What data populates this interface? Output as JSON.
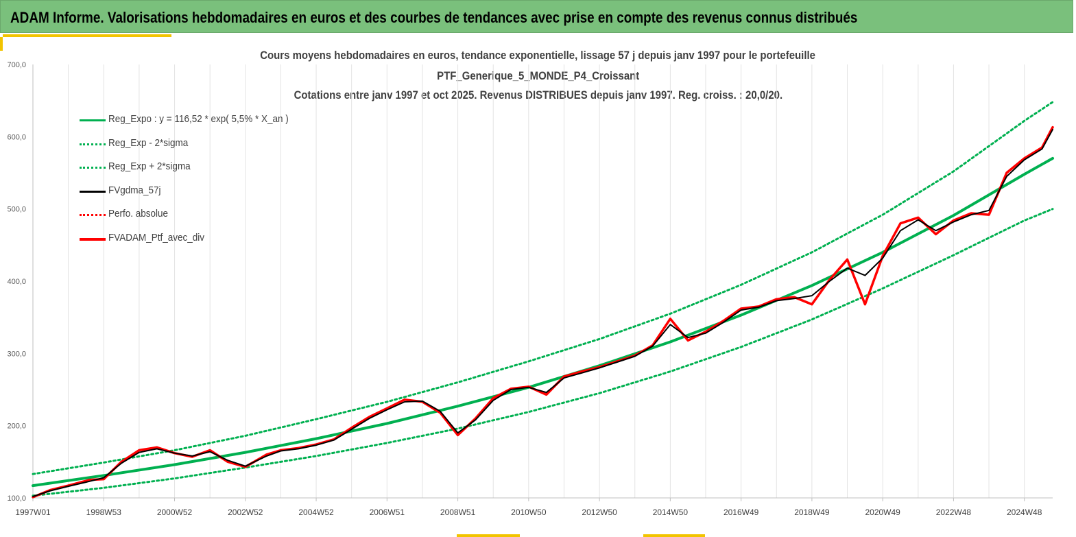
{
  "header": {
    "title": "ADAM Informe. Valorisations hebdomadaires en euros et des courbes de tendances avec prise en compte des revenus connus distribués"
  },
  "chart_data": {
    "type": "line",
    "title_lines": [
      "Cours moyens hebdomadaires  en euros, tendance exponentielle, lissage 57 j depuis janv 1997 pour le portefeuille",
      "PTF_Generique_5_MONDE_P4_Croissant",
      "Cotations  entre janv 1997 et oct 2025. Revenus DISTRIBUES depuis janv 1997. Reg. croiss. : 20,0/20."
    ],
    "ylim": [
      100,
      700
    ],
    "y_ticks": [
      "100,0",
      "200,0",
      "300,0",
      "400,0",
      "500,0",
      "600,0",
      "700,0"
    ],
    "y_tick_values": [
      100,
      200,
      300,
      400,
      500,
      600,
      700
    ],
    "x_range": [
      1997.0,
      2025.8
    ],
    "x_ticks": [
      "1997W01",
      "1998W53",
      "2000W52",
      "2002W52",
      "2004W52",
      "2006W51",
      "2008W51",
      "2010W50",
      "2012W50",
      "2014W50",
      "2016W49",
      "2018W49",
      "2020W49",
      "2022W48",
      "2024W48"
    ],
    "x_tick_years": [
      1997.0,
      1999.0,
      2001.0,
      2003.0,
      2005.0,
      2007.0,
      2009.0,
      2011.0,
      2013.0,
      2015.0,
      2017.0,
      2019.0,
      2021.0,
      2023.0,
      2025.0
    ],
    "grid": "vertical",
    "legend_position": "top-left",
    "series": [
      {
        "name": "Reg_Expo : y = 116,52 * exp( 5,5% *  X_an )",
        "color": "#00b050",
        "style": "solid",
        "x": [
          1997.0,
          1999.0,
          2001.0,
          2003.0,
          2005.0,
          2007.0,
          2009.0,
          2011.0,
          2013.0,
          2015.0,
          2017.0,
          2019.0,
          2021.0,
          2023.0,
          2025.0,
          2025.8
        ],
        "y": [
          117,
          131,
          146,
          163,
          182,
          203,
          227,
          253,
          283,
          316,
          353,
          394,
          440,
          491,
          548,
          570
        ]
      },
      {
        "name": "Reg_Exp - 2*sigma",
        "color": "#00b050",
        "style": "dotted",
        "x": [
          1997.0,
          1999.0,
          2001.0,
          2003.0,
          2005.0,
          2007.0,
          2009.0,
          2011.0,
          2013.0,
          2015.0,
          2017.0,
          2019.0,
          2021.0,
          2023.0,
          2025.0,
          2025.8
        ],
        "y": [
          103,
          114,
          127,
          142,
          158,
          176,
          196,
          219,
          245,
          275,
          309,
          347,
          390,
          436,
          484,
          500
        ]
      },
      {
        "name": "Reg_Exp + 2*sigma",
        "color": "#00b050",
        "style": "dotted",
        "x": [
          1997.0,
          1999.0,
          2001.0,
          2003.0,
          2005.0,
          2007.0,
          2009.0,
          2011.0,
          2013.0,
          2015.0,
          2017.0,
          2019.0,
          2021.0,
          2023.0,
          2025.0,
          2025.8
        ],
        "y": [
          133,
          149,
          166,
          186,
          209,
          233,
          260,
          289,
          320,
          355,
          395,
          440,
          492,
          552,
          622,
          648
        ]
      },
      {
        "name": "FVgdma_57j",
        "color": "#000000",
        "style": "solid",
        "x": [
          1997.0,
          1997.5,
          1998.0,
          1998.6,
          1999.0,
          1999.5,
          2000.0,
          2000.5,
          2001.0,
          2001.5,
          2002.0,
          2002.5,
          2003.0,
          2003.6,
          2004.0,
          2004.5,
          2005.0,
          2005.5,
          2006.0,
          2006.5,
          2007.0,
          2007.5,
          2008.0,
          2008.5,
          2009.0,
          2009.5,
          2010.0,
          2010.5,
          2011.0,
          2011.5,
          2012.0,
          2012.5,
          2013.0,
          2013.5,
          2014.0,
          2014.5,
          2015.0,
          2015.5,
          2016.0,
          2016.5,
          2017.0,
          2017.5,
          2018.0,
          2018.5,
          2019.0,
          2019.5,
          2020.0,
          2020.5,
          2021.0,
          2021.5,
          2022.0,
          2022.5,
          2023.0,
          2023.5,
          2024.0,
          2024.5,
          2025.0,
          2025.5,
          2025.8
        ],
        "y": [
          102,
          110,
          116,
          123,
          128,
          148,
          163,
          168,
          162,
          158,
          164,
          152,
          144,
          158,
          165,
          168,
          173,
          180,
          195,
          210,
          222,
          233,
          234,
          220,
          190,
          208,
          235,
          250,
          253,
          246,
          266,
          273,
          280,
          288,
          296,
          310,
          340,
          322,
          328,
          343,
          360,
          364,
          373,
          376,
          380,
          400,
          418,
          408,
          432,
          470,
          485,
          470,
          482,
          492,
          498,
          545,
          568,
          583,
          610
        ]
      },
      {
        "name": "Perfo. absolue",
        "color": "#ff0000",
        "style": "dotted",
        "x": [
          1997.0,
          1997.5,
          1998.0,
          1998.6,
          1999.0,
          1999.5,
          2000.0,
          2000.5,
          2001.0,
          2001.5,
          2002.0,
          2002.5,
          2003.0,
          2003.6,
          2004.0,
          2004.5,
          2005.0,
          2005.5,
          2006.0,
          2006.5,
          2007.0,
          2007.5,
          2008.0,
          2008.5,
          2009.0,
          2009.5,
          2010.0,
          2010.5,
          2011.0,
          2011.5,
          2012.0,
          2012.5,
          2013.0,
          2013.5,
          2014.0,
          2014.5,
          2015.0,
          2015.5,
          2016.0,
          2016.5,
          2017.0,
          2017.5,
          2018.0,
          2018.5,
          2019.0,
          2019.5,
          2020.0,
          2020.5,
          2021.0,
          2021.5,
          2022.0,
          2022.5,
          2023.0,
          2023.5,
          2024.0,
          2024.5,
          2025.0,
          2025.5,
          2025.8
        ],
        "y": [
          101,
          111,
          117,
          125,
          126,
          150,
          166,
          170,
          162,
          157,
          166,
          150,
          143,
          160,
          166,
          169,
          174,
          181,
          197,
          212,
          224,
          236,
          233,
          218,
          187,
          210,
          238,
          251,
          254,
          243,
          268,
          275,
          281,
          289,
          297,
          311,
          348,
          318,
          330,
          345,
          362,
          365,
          375,
          378,
          368,
          402,
          430,
          368,
          435,
          480,
          488,
          465,
          484,
          494,
          492,
          550,
          570,
          585,
          613
        ]
      },
      {
        "name": "FVADAM_Ptf_avec_div",
        "color": "#ff0000",
        "style": "solid",
        "x": [
          1997.0,
          1997.5,
          1998.0,
          1998.6,
          1999.0,
          1999.5,
          2000.0,
          2000.5,
          2001.0,
          2001.5,
          2002.0,
          2002.5,
          2003.0,
          2003.6,
          2004.0,
          2004.5,
          2005.0,
          2005.5,
          2006.0,
          2006.5,
          2007.0,
          2007.5,
          2008.0,
          2008.5,
          2009.0,
          2009.5,
          2010.0,
          2010.5,
          2011.0,
          2011.5,
          2012.0,
          2012.5,
          2013.0,
          2013.5,
          2014.0,
          2014.5,
          2015.0,
          2015.5,
          2016.0,
          2016.5,
          2017.0,
          2017.5,
          2018.0,
          2018.5,
          2019.0,
          2019.5,
          2020.0,
          2020.5,
          2021.0,
          2021.5,
          2022.0,
          2022.5,
          2023.0,
          2023.5,
          2024.0,
          2024.5,
          2025.0,
          2025.5,
          2025.8
        ],
        "y": [
          101,
          111,
          117,
          125,
          126,
          150,
          166,
          170,
          162,
          157,
          166,
          150,
          143,
          160,
          166,
          169,
          174,
          181,
          197,
          212,
          224,
          236,
          233,
          218,
          187,
          210,
          238,
          251,
          254,
          243,
          268,
          275,
          281,
          289,
          297,
          311,
          348,
          318,
          330,
          345,
          362,
          365,
          375,
          378,
          368,
          402,
          430,
          368,
          435,
          480,
          488,
          465,
          484,
          494,
          492,
          550,
          570,
          585,
          613
        ]
      }
    ]
  }
}
